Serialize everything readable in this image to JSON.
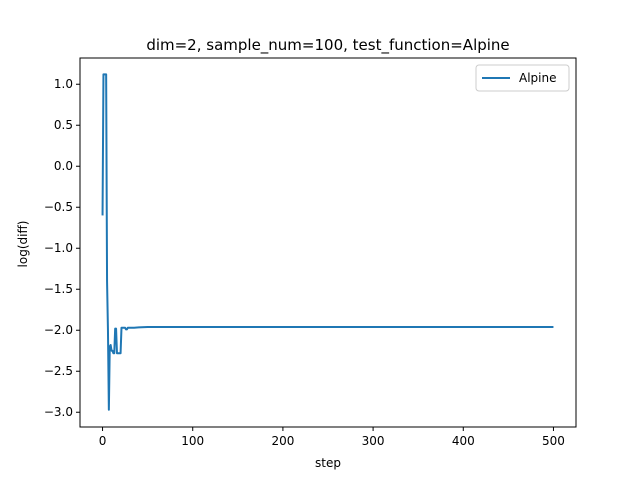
{
  "chart_data": {
    "type": "line",
    "title": "dim=2, sample_num=100, test_function=Alpine",
    "xlabel": "step",
    "ylabel": "log(diff)",
    "xlim": [
      -25,
      525
    ],
    "ylim": [
      -3.18,
      1.32
    ],
    "xticks": [
      0,
      100,
      200,
      300,
      400,
      500
    ],
    "xtick_labels": [
      "0",
      "100",
      "200",
      "300",
      "400",
      "500"
    ],
    "yticks": [
      1.0,
      0.5,
      0.0,
      -0.5,
      -1.0,
      -1.5,
      -2.0,
      -2.5,
      -3.0
    ],
    "ytick_labels": [
      "1.0",
      "0.5",
      "0.0",
      "−0.5",
      "−1.0",
      "−1.5",
      "−2.0",
      "−2.5",
      "−3.0"
    ],
    "grid": false,
    "legend": {
      "position": "top-right"
    },
    "series": [
      {
        "name": "Alpine",
        "color": "#1f77b4",
        "x": [
          0,
          1,
          2,
          3,
          4,
          5,
          6,
          7,
          8,
          9,
          10,
          11,
          12,
          13,
          14,
          15,
          16,
          17,
          18,
          19,
          20,
          21,
          22,
          23,
          24,
          25,
          26,
          27,
          28,
          29,
          30,
          35,
          40,
          50,
          60,
          100,
          200,
          300,
          400,
          500
        ],
        "values": [
          -0.6,
          1.12,
          1.12,
          1.12,
          1.12,
          -1.4,
          -2.0,
          -2.97,
          -2.2,
          -2.18,
          -2.25,
          -2.25,
          -2.28,
          -2.28,
          -1.98,
          -1.98,
          -2.28,
          -2.28,
          -2.28,
          -2.28,
          -2.28,
          -1.97,
          -1.97,
          -1.97,
          -1.97,
          -1.97,
          -1.99,
          -1.99,
          -1.97,
          -1.97,
          -1.97,
          -1.97,
          -1.965,
          -1.96,
          -1.96,
          -1.96,
          -1.96,
          -1.96,
          -1.96,
          -1.96
        ]
      }
    ]
  }
}
